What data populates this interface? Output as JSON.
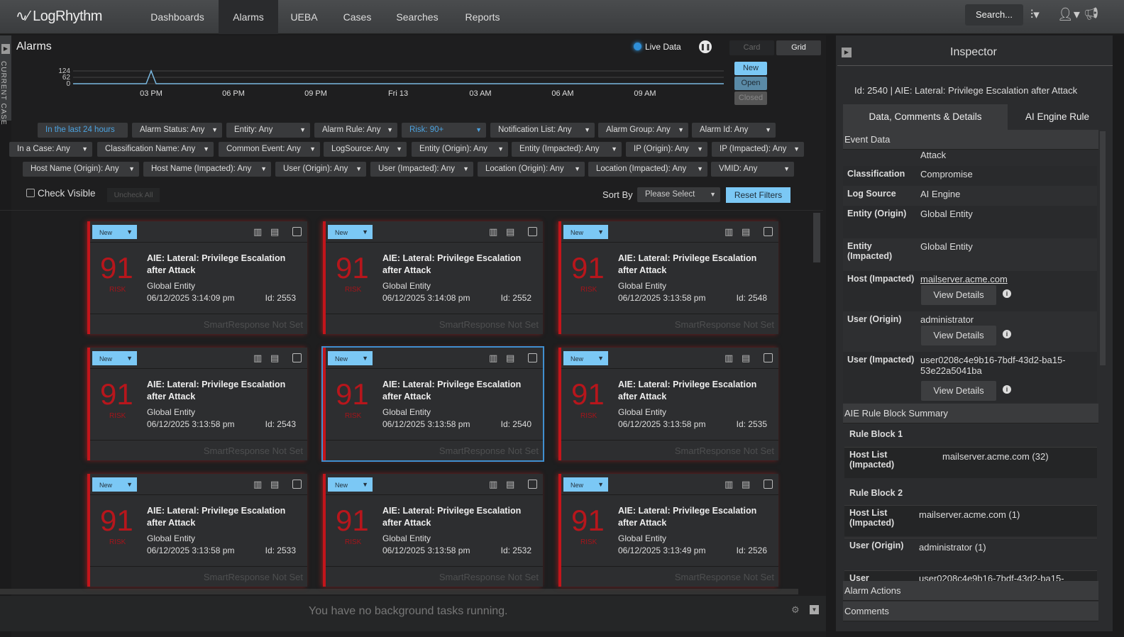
{
  "header": {
    "logo": "LogRhythm",
    "nav": [
      "Dashboards",
      "Alarms",
      "UEBA",
      "Cases",
      "Searches",
      "Reports"
    ],
    "active": "Alarms",
    "search": "Search..."
  },
  "left_strip": {
    "label": "CURRENT CASE"
  },
  "alarms": {
    "title": "Alarms",
    "live_label": "Live Data",
    "view_card": "Card",
    "view_grid": "Grid",
    "status_buttons": [
      "New",
      "Open",
      "Closed"
    ],
    "chart_data": {
      "type": "line",
      "y_ticks": [
        "124",
        "62",
        "0"
      ],
      "x_ticks": [
        "03 PM",
        "06 PM",
        "09 PM",
        "Fri 13",
        "03 AM",
        "06 AM",
        "09 AM"
      ],
      "peak_value": 124,
      "peak_at": "03 PM"
    },
    "filters": [
      [
        "In the last 24 hours",
        "Alarm Status: Any",
        "Entity: Any",
        "Alarm Rule: Any",
        "Risk: 90+",
        "Notification List: Any",
        "Alarm Group: Any",
        "Alarm Id: Any"
      ],
      [
        "In a Case: Any",
        "Classification Name: Any",
        "Common Event: Any",
        "LogSource: Any",
        "Entity (Origin): Any",
        "Entity (Impacted): Any",
        "IP (Origin): Any",
        "IP (Impacted): Any"
      ],
      [
        "Host Name (Origin): Any",
        "Host Name (Impacted): Any",
        "User (Origin): Any",
        "User (Impacted): Any",
        "Location (Origin): Any",
        "Location (Impacted): Any",
        "VMID: Any"
      ]
    ],
    "check_visible": "Check Visible",
    "uncheck_all": "Uncheck All",
    "sort_by": "Sort By",
    "sort_value": "Please Select",
    "reset": "Reset Filters",
    "cards": [
      {
        "status": "New",
        "risk": "91",
        "risk_label": "RISK",
        "title": "AIE: Lateral: Privilege Escalation after Attack",
        "entity": "Global Entity",
        "date": "06/12/2025 3:14:09 pm",
        "id": "Id: 2553",
        "footer": "SmartResponse Not Set"
      },
      {
        "status": "New",
        "risk": "91",
        "risk_label": "RISK",
        "title": "AIE: Lateral: Privilege Escalation after Attack",
        "entity": "Global Entity",
        "date": "06/12/2025 3:14:08 pm",
        "id": "Id: 2552",
        "footer": "SmartResponse Not Set"
      },
      {
        "status": "New",
        "risk": "91",
        "risk_label": "RISK",
        "title": "AIE: Lateral: Privilege Escalation after Attack",
        "entity": "Global Entity",
        "date": "06/12/2025 3:13:58 pm",
        "id": "Id: 2548",
        "footer": "SmartResponse Not Set"
      },
      {
        "status": "New",
        "risk": "91",
        "risk_label": "RISK",
        "title": "AIE: Lateral: Privilege Escalation after Attack",
        "entity": "Global Entity",
        "date": "06/12/2025 3:13:58 pm",
        "id": "Id: 2543",
        "footer": "SmartResponse Not Set"
      },
      {
        "status": "New",
        "risk": "91",
        "risk_label": "RISK",
        "title": "AIE: Lateral: Privilege Escalation after Attack",
        "entity": "Global Entity",
        "date": "06/12/2025 3:13:58 pm",
        "id": "Id: 2540",
        "footer": "SmartResponse Not Set",
        "selected": true
      },
      {
        "status": "New",
        "risk": "91",
        "risk_label": "RISK",
        "title": "AIE: Lateral: Privilege Escalation after Attack",
        "entity": "Global Entity",
        "date": "06/12/2025 3:13:58 pm",
        "id": "Id: 2535",
        "footer": "SmartResponse Not Set"
      },
      {
        "status": "New",
        "risk": "91",
        "risk_label": "RISK",
        "title": "AIE: Lateral: Privilege Escalation after Attack",
        "entity": "Global Entity",
        "date": "06/12/2025 3:13:58 pm",
        "id": "Id: 2533",
        "footer": "SmartResponse Not Set"
      },
      {
        "status": "New",
        "risk": "91",
        "risk_label": "RISK",
        "title": "AIE: Lateral: Privilege Escalation after Attack",
        "entity": "Global Entity",
        "date": "06/12/2025 3:13:58 pm",
        "id": "Id: 2532",
        "footer": "SmartResponse Not Set"
      },
      {
        "status": "New",
        "risk": "91",
        "risk_label": "RISK",
        "title": "AIE: Lateral: Privilege Escalation after Attack",
        "entity": "Global Entity",
        "date": "06/12/2025 3:13:49 pm",
        "id": "Id: 2526",
        "footer": "SmartResponse Not Set"
      }
    ],
    "tasks": "You have no background tasks running."
  },
  "inspector": {
    "title": "Inspector",
    "heading": "Id: 2540 | AIE: Lateral: Privilege Escalation after Attack",
    "tabs": [
      "Data, Comments & Details",
      "AI Engine Rule"
    ],
    "event_data": "Event Data",
    "overflow_text": "Attack",
    "rows": [
      {
        "label": "Classification",
        "value": "Compromise"
      },
      {
        "label": "Log Source",
        "value": "AI Engine"
      },
      {
        "label": "Entity (Origin)",
        "value": "Global Entity"
      },
      {
        "label": "Entity (Impacted)",
        "value": "Global Entity"
      },
      {
        "label": "Host (Impacted)",
        "value": "mailserver.acme.com",
        "details": true
      },
      {
        "label": "User (Origin)",
        "value": "administrator",
        "details": true
      },
      {
        "label": "User (Impacted)",
        "value": "user0208c4e9b16-7bdf-43d2-ba15-53e22a5041ba",
        "details": true
      }
    ],
    "view_details": "View Details",
    "aie_summary": "AIE Rule Block Summary",
    "blocks": [
      {
        "name": "Rule Block 1",
        "rows": [
          {
            "label": "Host List (Impacted)",
            "value": "mailserver.acme.com (32)"
          }
        ]
      },
      {
        "name": "Rule Block 2",
        "rows": [
          {
            "label": "Host List (Impacted)",
            "value": "mailserver.acme.com (1)"
          },
          {
            "label": "User (Origin)",
            "value": "administrator (1)"
          },
          {
            "label": "User",
            "value": "user0208c4e9b16-7bdf-43d2-ba15-"
          }
        ]
      }
    ],
    "alarm_actions": "Alarm Actions",
    "comments": "Comments"
  },
  "colors": {
    "accent": "#7bc8f5",
    "risk": "#c3151b",
    "link": "#4ca3e0"
  }
}
